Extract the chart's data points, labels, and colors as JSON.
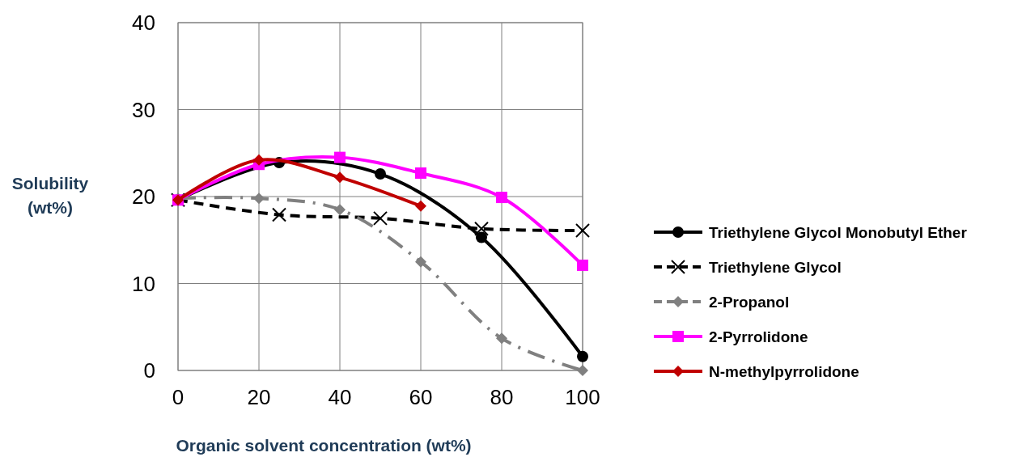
{
  "chart_data": {
    "type": "line",
    "xlabel": "Organic solvent concentration (wt%)",
    "ylabel": "Solubility (wt%)",
    "xlim": [
      0,
      100
    ],
    "xticks": [
      0,
      20,
      40,
      60,
      80,
      100
    ],
    "ylim": [
      0,
      40
    ],
    "yticks": [
      0,
      10,
      20,
      30,
      40
    ],
    "grid": true,
    "legend": "right",
    "series": [
      {
        "name": "Triethylene Glycol Monobutyl Ether",
        "color": "#000000",
        "marker": "circle",
        "line_style": "solid",
        "x": [
          0,
          25,
          50,
          75,
          100
        ],
        "values": [
          19.6,
          23.9,
          22.6,
          15.3,
          1.6
        ]
      },
      {
        "name": "Triethylene Glycol",
        "color": "#000000",
        "marker": "cross",
        "line_style": "dashed",
        "x": [
          0,
          25,
          50,
          75,
          100
        ],
        "values": [
          19.6,
          17.9,
          17.5,
          16.3,
          16.1
        ]
      },
      {
        "name": "2-Propanol",
        "color": "#808080",
        "marker": "diamond",
        "line_style": "dashdot",
        "x": [
          0,
          20,
          40,
          60,
          80,
          100
        ],
        "values": [
          19.8,
          19.8,
          18.5,
          12.5,
          3.7,
          0
        ]
      },
      {
        "name": "2-Pyrrolidone",
        "color": "#ff00ff",
        "marker": "square",
        "line_style": "solid",
        "x": [
          0,
          20,
          40,
          60,
          80,
          100
        ],
        "values": [
          19.6,
          23.7,
          24.5,
          22.7,
          19.9,
          12.1
        ]
      },
      {
        "name": "N-methylpyrrolidone",
        "color": "#c00000",
        "marker": "diamond",
        "line_style": "solid",
        "x": [
          0,
          20,
          40,
          60
        ],
        "values": [
          19.6,
          24.2,
          22.2,
          18.9
        ]
      }
    ]
  }
}
